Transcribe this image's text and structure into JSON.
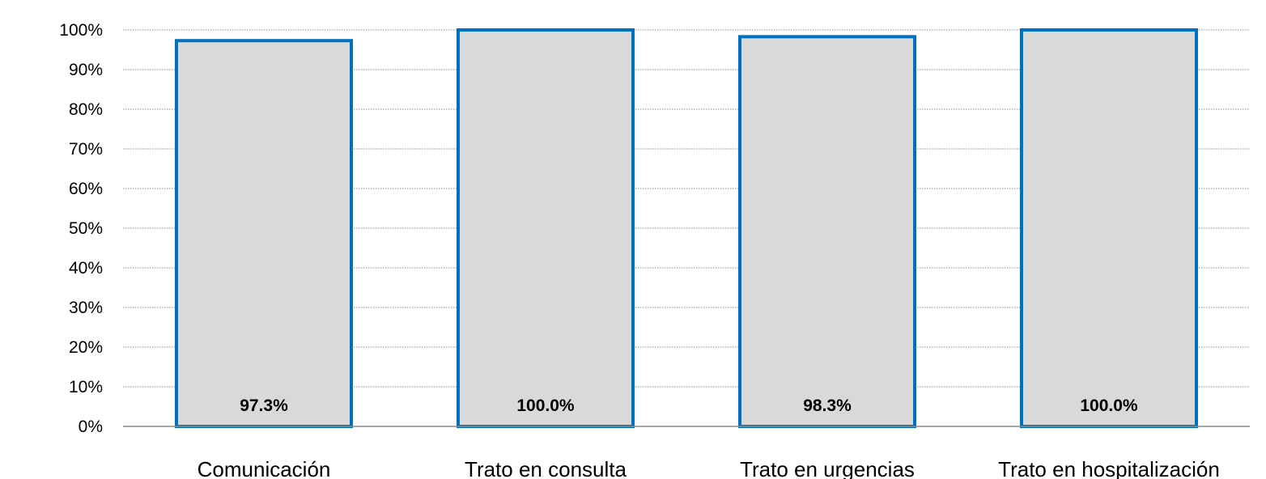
{
  "chart_data": {
    "type": "bar",
    "categories": [
      "Comunicación",
      "Trato en consulta",
      "Trato en urgencias",
      "Trato en hospitalización"
    ],
    "values": [
      97.3,
      100.0,
      98.3,
      100.0
    ],
    "data_labels": [
      "97.3%",
      "100.0%",
      "98.3%",
      "100.0%"
    ],
    "y_tick_labels": [
      "0%",
      "10%",
      "20%",
      "30%",
      "40%",
      "50%",
      "60%",
      "70%",
      "80%",
      "90%",
      "100%"
    ],
    "ylim": [
      0,
      100
    ],
    "grid": true,
    "legend": "none",
    "bar_fill": "#d9d9d9",
    "bar_border": "#0070c0",
    "title": "",
    "xlabel": "",
    "ylabel": ""
  }
}
